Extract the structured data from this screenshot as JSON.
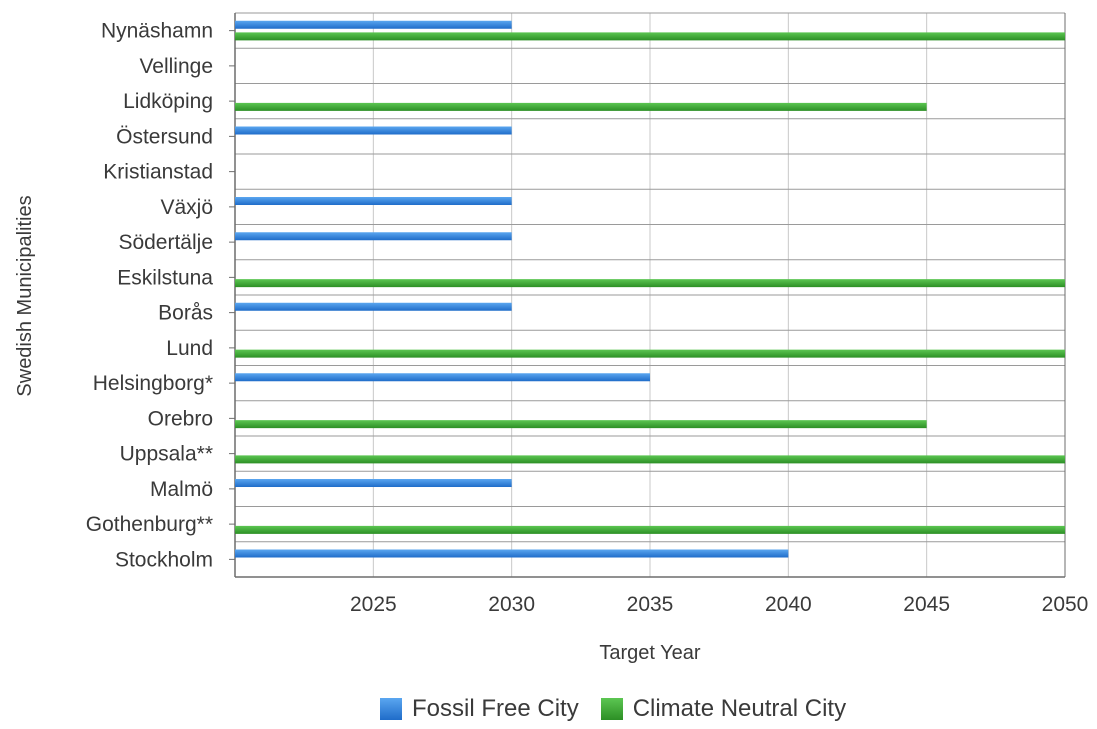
{
  "chart_data": {
    "type": "bar",
    "orientation": "horizontal",
    "categories": [
      "Nynäshamn",
      "Vellinge",
      "Lidköping",
      "Östersund",
      "Kristianstad",
      "Växjö",
      "Södertälje",
      "Eskilstuna",
      "Borås",
      "Lund",
      "Helsingborg*",
      "Orebro",
      "Uppsala**",
      "Malmö",
      "Gothenburg**",
      "Stockholm"
    ],
    "series": [
      {
        "name": "Fossil Free City",
        "color": "#2f7fd9",
        "values": [
          2030,
          null,
          null,
          2030,
          null,
          2030,
          2030,
          null,
          2030,
          null,
          2035,
          null,
          null,
          2030,
          null,
          2040
        ]
      },
      {
        "name": "Climate Neutral City",
        "color": "#3aa832",
        "values": [
          2050,
          null,
          2045,
          null,
          null,
          null,
          null,
          2050,
          null,
          2050,
          null,
          2045,
          2050,
          null,
          2050,
          null
        ]
      }
    ],
    "xlabel": "Target Year",
    "ylabel": "Swedish Municipalities",
    "xticks": [
      2025,
      2030,
      2035,
      2040,
      2045,
      2050
    ],
    "xlim": [
      2020,
      2050
    ],
    "grid": true,
    "legend_position": "bottom-center"
  }
}
